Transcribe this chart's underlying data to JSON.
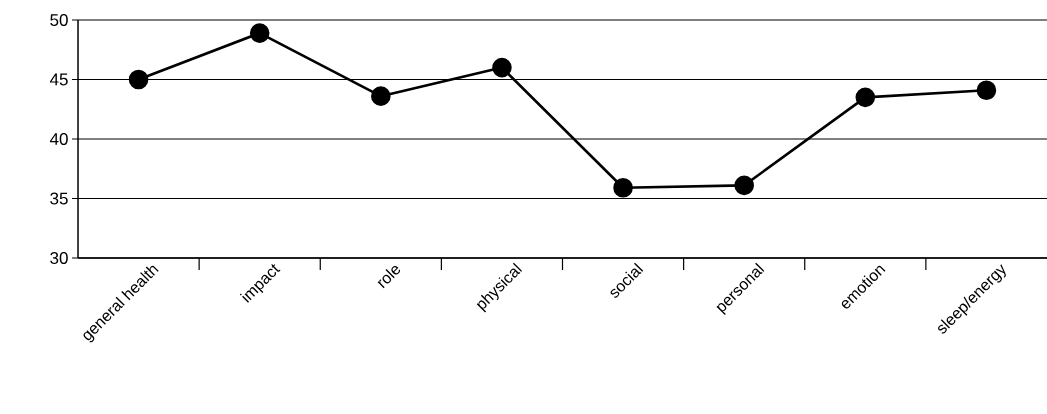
{
  "chart_data": {
    "type": "line",
    "categories": [
      "general health",
      "impact",
      "role",
      "physical",
      "social",
      "personal",
      "emotion",
      "sleep/energy"
    ],
    "series": [
      {
        "color": "#000000",
        "values": [
          45,
          48.9,
          43.6,
          46.0,
          35.9,
          36.1,
          43.5,
          44.1
        ]
      }
    ],
    "ylim": [
      30,
      50
    ],
    "yticks": [
      30,
      35,
      40,
      45,
      50
    ],
    "grid": "y",
    "marker": "circle",
    "line_style": "solid"
  }
}
